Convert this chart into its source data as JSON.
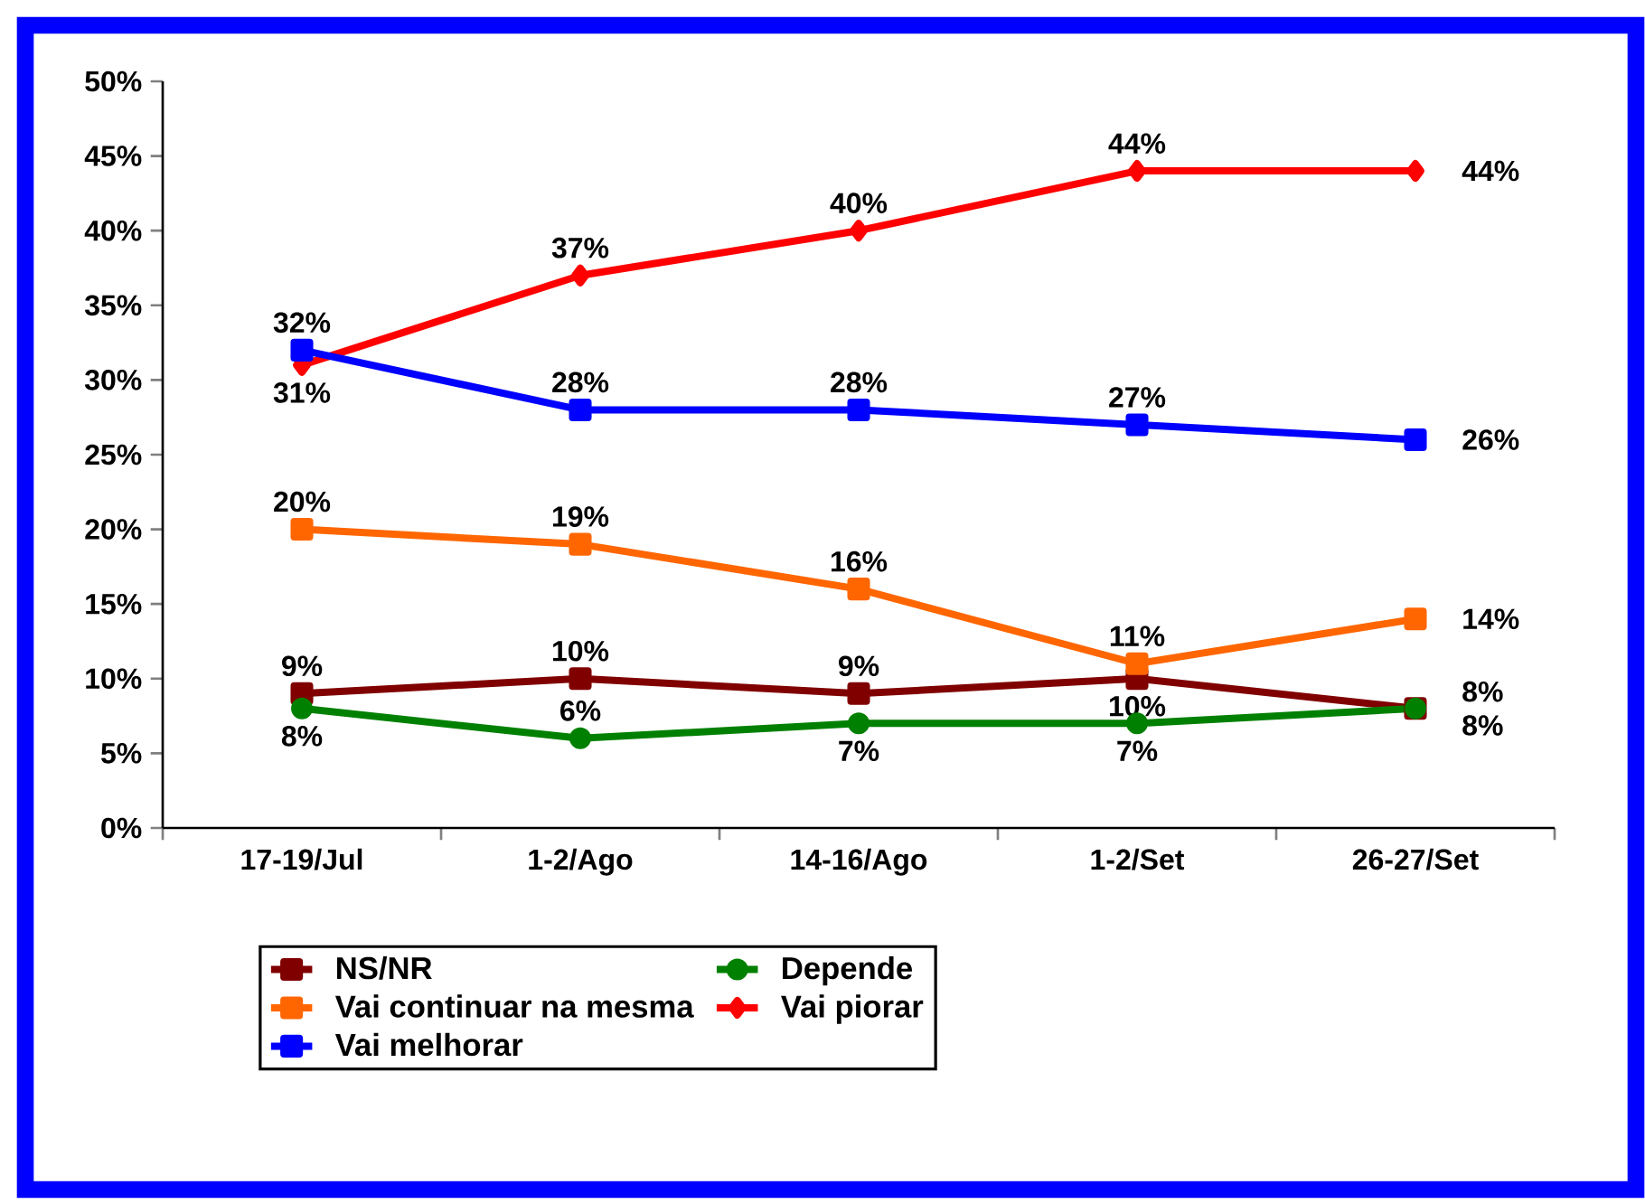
{
  "chart_data": {
    "type": "line",
    "categories": [
      "17-19/Jul",
      "1-2/Ago",
      "14-16/Ago",
      "1-2/Set",
      "26-27/Set"
    ],
    "series": [
      {
        "name": "NS/NR",
        "color": "#800000",
        "marker": "square",
        "values": [
          9,
          10,
          9,
          10,
          8
        ],
        "value_labels": [
          "9%",
          "10%",
          "9%",
          "10%",
          "8%"
        ]
      },
      {
        "name": "Depende",
        "color": "#008000",
        "marker": "circle",
        "values": [
          8,
          6,
          7,
          7,
          8
        ],
        "value_labels": [
          "8%",
          "6%",
          "7%",
          "7%",
          "8%"
        ]
      },
      {
        "name": "Vai continuar na mesma",
        "color": "#ff6600",
        "marker": "square",
        "values": [
          20,
          19,
          16,
          11,
          14
        ],
        "value_labels": [
          "20%",
          "19%",
          "16%",
          "11%",
          "14%"
        ]
      },
      {
        "name": "Vai piorar",
        "color": "#ff0000",
        "marker": "diamond",
        "values": [
          31,
          37,
          40,
          44,
          44
        ],
        "value_labels": [
          "31%",
          "37%",
          "40%",
          "44%",
          "44%"
        ]
      },
      {
        "name": "Vai melhorar",
        "color": "#0000ff",
        "marker": "square",
        "values": [
          32,
          28,
          28,
          27,
          26
        ],
        "value_labels": [
          "32%",
          "28%",
          "28%",
          "27%",
          "26%"
        ]
      }
    ],
    "ylim": [
      0,
      50
    ],
    "yticks": [
      {
        "value": 0,
        "label": "0%"
      },
      {
        "value": 5,
        "label": "5%"
      },
      {
        "value": 10,
        "label": "10%"
      },
      {
        "value": 15,
        "label": "15%"
      },
      {
        "value": 20,
        "label": "20%"
      },
      {
        "value": 25,
        "label": "25%"
      },
      {
        "value": 30,
        "label": "30%"
      },
      {
        "value": 35,
        "label": "35%"
      },
      {
        "value": 40,
        "label": "40%"
      },
      {
        "value": 45,
        "label": "45%"
      },
      {
        "value": 50,
        "label": "50%"
      }
    ],
    "legend": "bottom"
  }
}
